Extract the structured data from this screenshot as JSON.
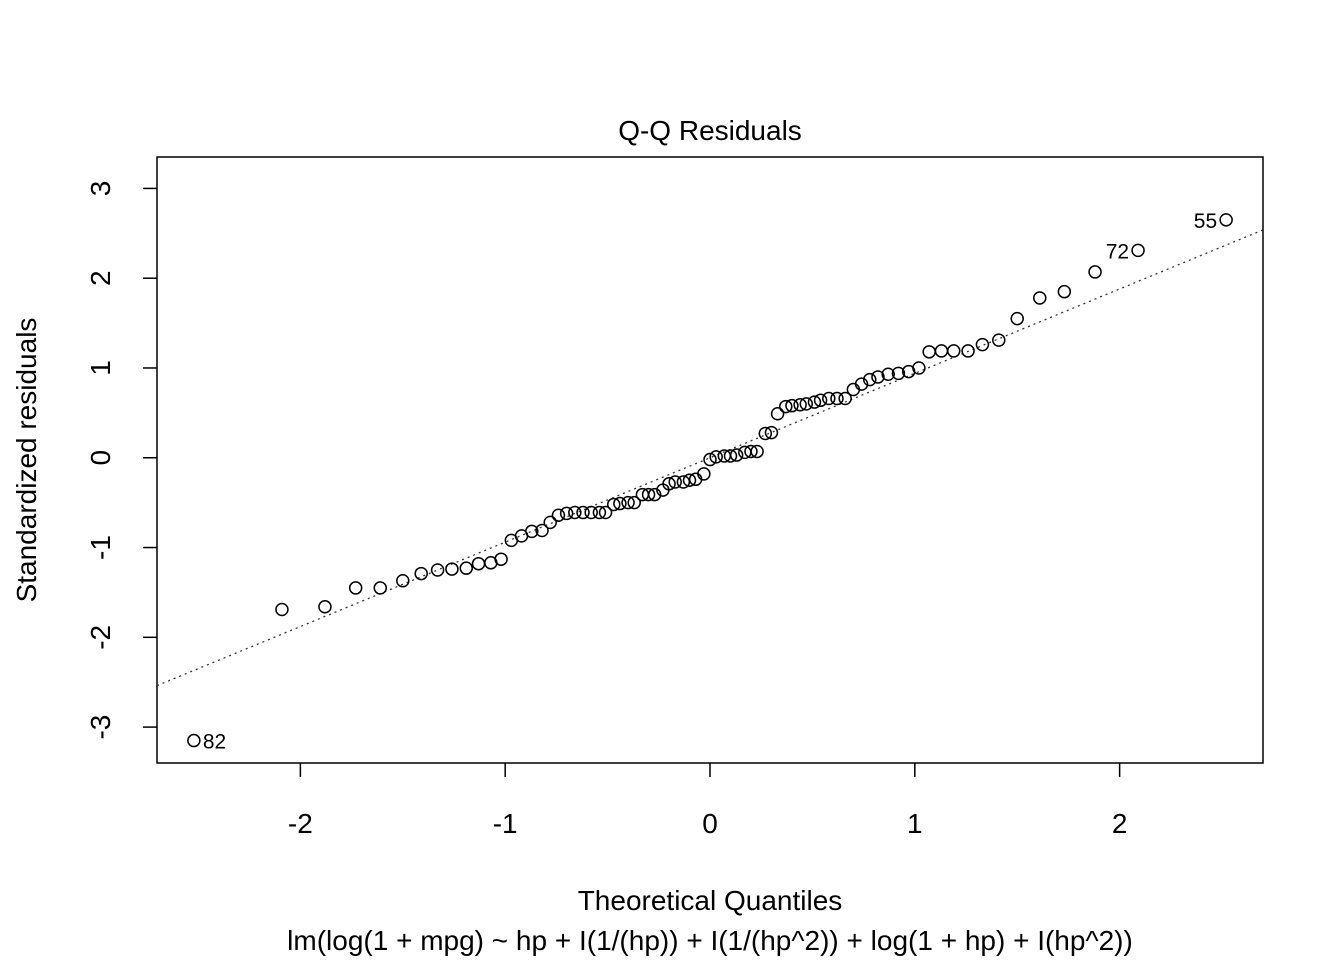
{
  "chart_data": {
    "type": "scatter",
    "title": "Q-Q Residuals",
    "xlabel": "Theoretical Quantiles",
    "ylabel": "Standardized residuals",
    "subtitle": "lm(log(1 + mpg) ~ hp + I(1/(hp)) + I(1/(hp^2)) + log(1 + hp) + I(hp^2))",
    "xlim": [
      -2.7,
      2.7
    ],
    "ylim": [
      -3.4,
      3.35
    ],
    "xticks": [
      -2,
      -1,
      0,
      1,
      2
    ],
    "yticks": [
      -3,
      -2,
      -1,
      0,
      1,
      2,
      3
    ],
    "reference_line": {
      "style": "dotted",
      "slope": 0.94,
      "intercept": 0.0
    },
    "labeled_points": [
      {
        "label": "82",
        "x": -2.52,
        "y": -3.15
      },
      {
        "label": "72",
        "x": 2.09,
        "y": 2.31
      },
      {
        "label": "55",
        "x": 2.52,
        "y": 2.65
      }
    ],
    "x": [
      -2.52,
      -2.09,
      -1.88,
      -1.73,
      -1.61,
      -1.5,
      -1.41,
      -1.33,
      -1.26,
      -1.19,
      -1.13,
      -1.07,
      -1.02,
      -0.97,
      -0.92,
      -0.87,
      -0.82,
      -0.78,
      -0.74,
      -0.7,
      -0.66,
      -0.62,
      -0.58,
      -0.54,
      -0.51,
      -0.47,
      -0.44,
      -0.4,
      -0.37,
      -0.33,
      -0.3,
      -0.27,
      -0.23,
      -0.2,
      -0.17,
      -0.13,
      -0.1,
      -0.07,
      -0.03,
      0.0,
      0.03,
      0.07,
      0.1,
      0.13,
      0.17,
      0.2,
      0.23,
      0.27,
      0.3,
      0.33,
      0.37,
      0.4,
      0.44,
      0.47,
      0.51,
      0.54,
      0.58,
      0.62,
      0.66,
      0.7,
      0.74,
      0.78,
      0.82,
      0.87,
      0.92,
      0.97,
      1.02,
      1.07,
      1.13,
      1.19,
      1.26,
      1.33,
      1.41,
      1.5,
      1.61,
      1.73,
      1.88,
      2.09,
      2.52
    ],
    "y": [
      -3.15,
      -1.69,
      -1.66,
      -1.45,
      -1.45,
      -1.37,
      -1.29,
      -1.25,
      -1.24,
      -1.23,
      -1.18,
      -1.17,
      -1.13,
      -0.92,
      -0.87,
      -0.82,
      -0.81,
      -0.72,
      -0.64,
      -0.62,
      -0.61,
      -0.61,
      -0.61,
      -0.61,
      -0.61,
      -0.52,
      -0.51,
      -0.5,
      -0.5,
      -0.41,
      -0.41,
      -0.41,
      -0.36,
      -0.29,
      -0.27,
      -0.27,
      -0.25,
      -0.24,
      -0.18,
      -0.02,
      0.01,
      0.02,
      0.02,
      0.03,
      0.06,
      0.07,
      0.07,
      0.27,
      0.28,
      0.49,
      0.57,
      0.58,
      0.59,
      0.6,
      0.62,
      0.64,
      0.66,
      0.66,
      0.66,
      0.76,
      0.82,
      0.87,
      0.9,
      0.93,
      0.94,
      0.96,
      1.0,
      1.18,
      1.19,
      1.19,
      1.19,
      1.26,
      1.31,
      1.55,
      1.78,
      1.85,
      2.07,
      2.31,
      2.65
    ]
  }
}
